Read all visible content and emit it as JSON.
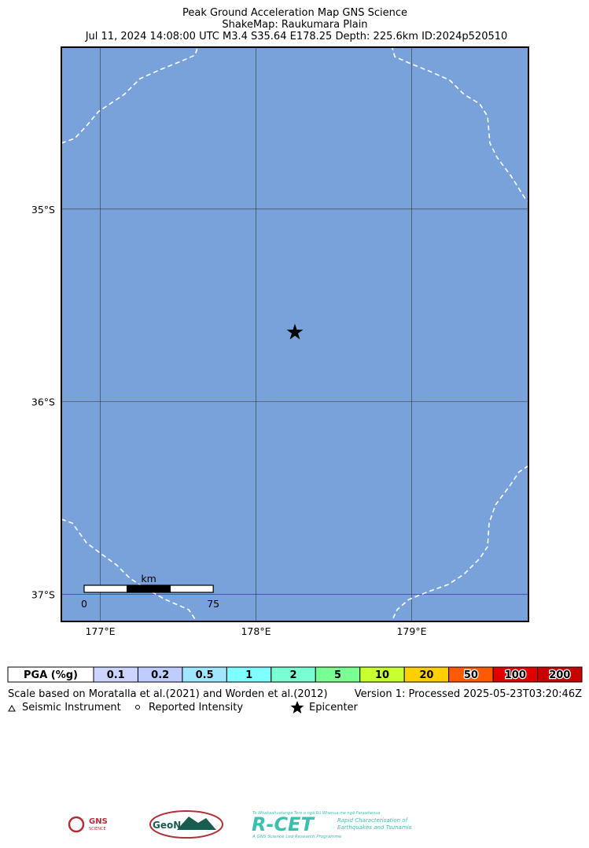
{
  "header": {
    "lines": [
      "Peak Ground Acceleration Map GNS Science",
      "ShakeMap: Raukumara Plain",
      "Jul 11, 2024 14:08:00 UTC M3.4 S35.64 E178.25 Depth: 225.6km ID:2024p520510"
    ]
  },
  "map": {
    "background": "#7aa2da",
    "xlim": [
      176.75,
      179.75
    ],
    "ylim": [
      -37.14,
      -34.16
    ],
    "lon_ticks": [
      {
        "value": 177,
        "label": "177°E"
      },
      {
        "value": 178,
        "label": "178°E"
      },
      {
        "value": 179,
        "label": "179°E"
      }
    ],
    "lat_ticks": [
      {
        "value": -35,
        "label": "35°S"
      },
      {
        "value": -36,
        "label": "36°S"
      },
      {
        "value": -37,
        "label": "37°S"
      }
    ],
    "epicenter": {
      "lon": 178.25,
      "lat": -35.64
    },
    "scale_bar": {
      "unit": "km",
      "ticks": [
        0,
        75
      ]
    }
  },
  "legend": {
    "title": "PGA (%g)",
    "bins": [
      {
        "label": "0.1",
        "color": "#ccd4ff"
      },
      {
        "label": "0.2",
        "color": "#bfccff"
      },
      {
        "label": "0.5",
        "color": "#a0e6ff"
      },
      {
        "label": "1",
        "color": "#80ffff"
      },
      {
        "label": "2",
        "color": "#7affd4"
      },
      {
        "label": "5",
        "color": "#7aff93"
      },
      {
        "label": "10",
        "color": "#c7ff30"
      },
      {
        "label": "20",
        "color": "#ffd000"
      },
      {
        "label": "50",
        "color": "#ff5a00"
      },
      {
        "label": "100",
        "color": "#e00000"
      },
      {
        "label": "200",
        "color": "#c80000"
      }
    ]
  },
  "notes": {
    "scale": "Scale based on Moratalla et al.(2021) and Worden et al.(2012)",
    "version": "Version 1: Processed 2025-05-23T03:20:46Z",
    "key": [
      "Seismic Instrument",
      "Reported Intensity",
      "Epicenter"
    ]
  },
  "logos": {
    "gns": [
      "GNS",
      "SCIENCE"
    ],
    "geonet": "GeoNet",
    "rcet": {
      "name": "R-CET",
      "maori": "Te Whakaahuatanga Tere o ngā Rū Whenua me ngā Parawhenua",
      "line1": "Rapid Characterisation of",
      "line2": "Earthquakes and Tsunamis",
      "footer": "A GNS Science Led Research Programme"
    }
  }
}
